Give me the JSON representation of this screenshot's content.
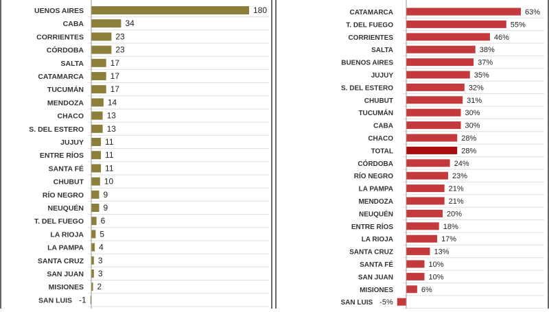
{
  "chart_data": [
    {
      "type": "bar",
      "orientation": "horizontal",
      "color": "#8c7f3c",
      "categories": [
        "UENOS AIRES",
        "CABA",
        "CORRIENTES",
        "CÓRDOBA",
        "SALTA",
        "CATAMARCA",
        "TUCUMÁN",
        "MENDOZA",
        "CHACO",
        "S. DEL ESTERO",
        "JUJUY",
        "ENTRE RÍOS",
        "SANTA FÉ",
        "CHUBUT",
        "RÍO NEGRO",
        "NEUQUÉN",
        "T. DEL FUEGO",
        "LA RIOJA",
        "LA PAMPA",
        "SANTA CRUZ",
        "SAN JUAN",
        "MISIONES",
        "SAN LUIS"
      ],
      "values": [
        180,
        34,
        23,
        23,
        17,
        17,
        17,
        14,
        13,
        13,
        11,
        11,
        11,
        10,
        9,
        9,
        6,
        5,
        4,
        3,
        3,
        2,
        -1
      ],
      "data_labels": [
        "180",
        "34",
        "23",
        "23",
        "17",
        "17",
        "17",
        "14",
        "13",
        "13",
        "11",
        "11",
        "11",
        "10",
        "9",
        "9",
        "6",
        "5",
        "4",
        "3",
        "3",
        "2",
        "-1"
      ],
      "grid": true
    },
    {
      "type": "bar",
      "orientation": "horizontal",
      "color": "#c4393b",
      "highlight_color": "#a80c0c",
      "highlight": "TOTAL",
      "categories": [
        "CATAMARCA",
        "T. DEL FUEGO",
        "CORRIENTES",
        "SALTA",
        "BUENOS AIRES",
        "JUJUY",
        "S. DEL ESTERO",
        "CHUBUT",
        "TUCUMÁN",
        "CABA",
        "CHACO",
        "TOTAL",
        "CÓRDOBA",
        "RÍO NEGRO",
        "LA PAMPA",
        "MENDOZA",
        "NEUQUÉN",
        "ENTRE RÍOS",
        "LA RIOJA",
        "SANTA CRUZ",
        "SANTA FÉ",
        "SAN JUAN",
        "MISIONES",
        "SAN LUIS"
      ],
      "values": [
        63,
        55,
        46,
        38,
        37,
        35,
        32,
        31,
        30,
        30,
        28,
        28,
        24,
        23,
        21,
        21,
        20,
        18,
        17,
        13,
        10,
        10,
        6,
        -5
      ],
      "data_labels": [
        "63%",
        "55%",
        "46%",
        "38%",
        "37%",
        "35%",
        "32%",
        "31%",
        "30%",
        "30%",
        "28%",
        "28%",
        "24%",
        "23%",
        "21%",
        "21%",
        "20%",
        "18%",
        "17%",
        "13%",
        "10%",
        "10%",
        "6%",
        "-5%"
      ],
      "unit": "%",
      "grid": true
    }
  ]
}
